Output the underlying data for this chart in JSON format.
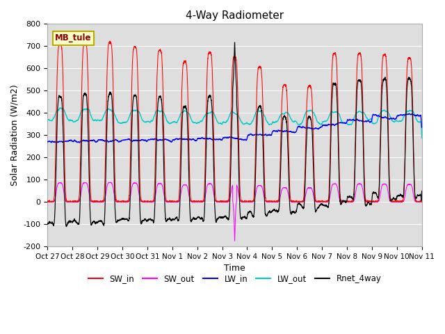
{
  "title": "4-Way Radiometer",
  "xlabel": "Time",
  "ylabel": "Solar Radiation (W/m2)",
  "ylim": [
    -200,
    800
  ],
  "yticks": [
    -200,
    -100,
    0,
    100,
    200,
    300,
    400,
    500,
    600,
    700,
    800
  ],
  "bg_color": "#dedede",
  "fig_color": "#ffffff",
  "x_tick_labels": [
    "Oct 27",
    "Oct 28",
    "Oct 29",
    "Oct 30",
    "Oct 31",
    "Nov 1",
    "Nov 2",
    "Nov 3",
    "Nov 4",
    "Nov 5",
    "Nov 6",
    "Nov 7",
    "Nov 8",
    "Nov 9",
    "Nov 10",
    "Nov 11"
  ],
  "label_box": "MB_tule",
  "n_days": 15,
  "pts_per_day": 288,
  "colors": {
    "SW_in": "#ff0000",
    "SW_out": "#ff00ff",
    "LW_in": "#0000ff",
    "LW_out": "#00cccc",
    "Rnet_4way": "#000000"
  }
}
